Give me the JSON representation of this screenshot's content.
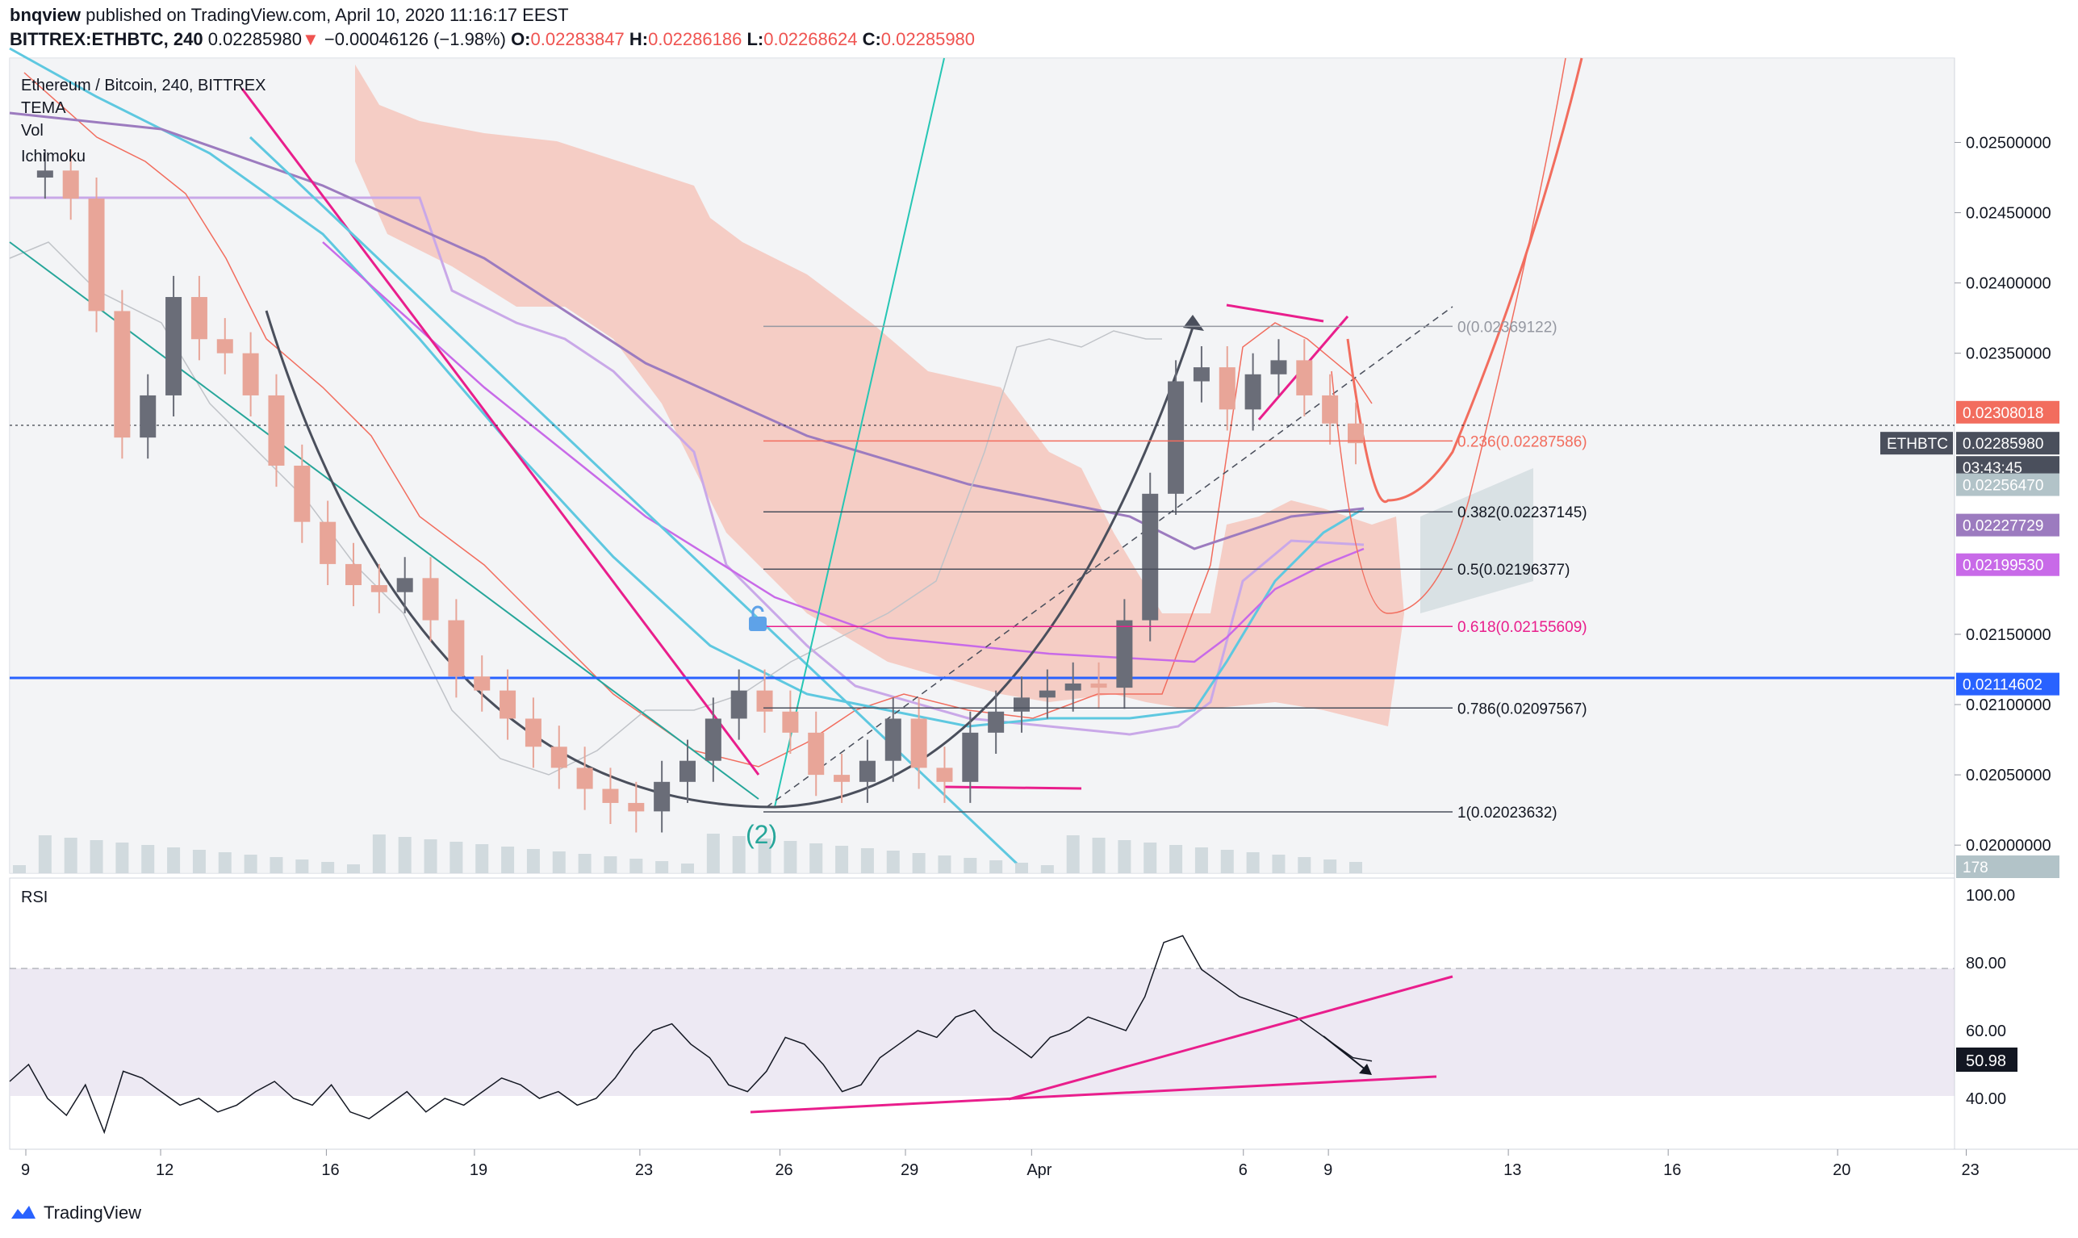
{
  "header": {
    "publisher": "bnqview",
    "published_text": "published on TradingView.com, April 10, 2020 11:16:17 EEST",
    "symbol": "BITTREX:ETHBTC, 240",
    "last": "0.02285980",
    "change_arrow": "▼",
    "change": "−0.00046126 (−1.98%)",
    "o_label": "O:",
    "o_val": "0.02283847",
    "h_label": "H:",
    "h_val": "0.02286186",
    "l_label": "L:",
    "l_val": "0.02268624",
    "c_label": "C:",
    "c_val": "0.02285980"
  },
  "legend": {
    "title": "Ethereum / Bitcoin, 240, BITTREX",
    "items": [
      "TEMA",
      "Vol",
      "Ichimoku"
    ]
  },
  "price_axis": {
    "ticks": [
      "0.02500000",
      "0.02450000",
      "0.02400000",
      "0.02350000",
      "0.02150000",
      "0.02100000",
      "0.02050000",
      "0.02000000"
    ],
    "badges": [
      {
        "text": "0.02308018",
        "color": "#f26d5e"
      },
      {
        "text": "ETHBTC",
        "color": "#4a4f5c"
      },
      {
        "text": "0.02285980",
        "color": "#4a4f5c"
      },
      {
        "text": "03:43:45",
        "color": "#4a4f5c"
      },
      {
        "text": "0.02256470",
        "color": "#b2c3c8"
      },
      {
        "text": "0.02227729",
        "color": "#9c7bbf"
      },
      {
        "text": "0.02199530",
        "color": "#c86ae8"
      },
      {
        "text": "0.02114602",
        "color": "#2962ff"
      },
      {
        "text": "178",
        "color": "#b2c3c8"
      }
    ]
  },
  "fib": [
    {
      "label": "0(0.02369122)",
      "color": "#9598a1"
    },
    {
      "label": "0.236(0.02287586)",
      "color": "#f26d5e"
    },
    {
      "label": "0.382(0.02237145)",
      "color": "#131722"
    },
    {
      "label": "0.5(0.02196377)",
      "color": "#131722"
    },
    {
      "label": "0.618(0.02155609)",
      "color": "#e91e8c"
    },
    {
      "label": "0.786(0.02097567)",
      "color": "#131722"
    },
    {
      "label": "1(0.02023632)",
      "color": "#131722"
    }
  ],
  "wave_label": "(2)",
  "rsi": {
    "label": "RSI",
    "ticks": [
      "100.00",
      "80.00",
      "60.00",
      "40.00"
    ],
    "value": "50.98"
  },
  "time_axis": [
    "9",
    "12",
    "16",
    "19",
    "23",
    "26",
    "29",
    "Apr",
    "6",
    "9",
    "13",
    "16",
    "20",
    "23"
  ],
  "brand": "TradingView",
  "chart_data": {
    "type": "candlestick",
    "title": "Ethereum / Bitcoin, 240, BITTREX",
    "x_labels": [
      "9",
      "12",
      "16",
      "19",
      "23",
      "26",
      "29",
      "Apr",
      "6",
      "9",
      "13",
      "16",
      "20",
      "23"
    ],
    "ylim": [
      0.0198,
      0.0256
    ],
    "close_series_approx": [
      0.02475,
      0.0248,
      0.0246,
      0.0238,
      0.0229,
      0.0232,
      0.0239,
      0.0236,
      0.0235,
      0.0232,
      0.0227,
      0.0223,
      0.022,
      0.02185,
      0.0218,
      0.0219,
      0.0216,
      0.0212,
      0.0211,
      0.0209,
      0.0207,
      0.02055,
      0.0204,
      0.0203,
      0.02024,
      0.02045,
      0.0206,
      0.0209,
      0.0211,
      0.02095,
      0.0208,
      0.0205,
      0.02045,
      0.0206,
      0.0209,
      0.02055,
      0.02045,
      0.0208,
      0.02095,
      0.02105,
      0.0211,
      0.02115,
      0.02112,
      0.0216,
      0.0225,
      0.0233,
      0.0234,
      0.0231,
      0.02335,
      0.02345,
      0.0232,
      0.023,
      0.02286
    ],
    "fib_levels": [
      0.02369122,
      0.02287586,
      0.02237145,
      0.02196377,
      0.02155609,
      0.02097567,
      0.02023632
    ],
    "horizontal_line": 0.02114602,
    "rsi_ylim": [
      25,
      105
    ],
    "rsi_last": 50.98
  }
}
